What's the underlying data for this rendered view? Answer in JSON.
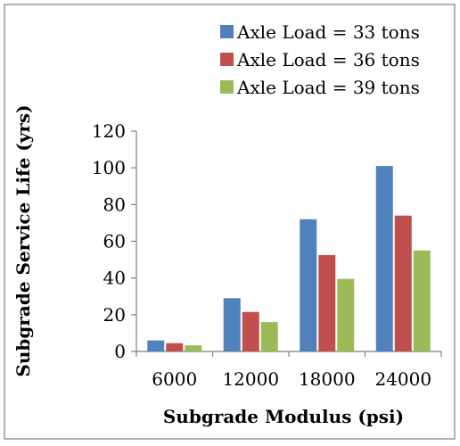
{
  "chart_data": {
    "type": "bar",
    "title": "",
    "xlabel": "Subgrade Modulus (psi)",
    "ylabel": "Subgrade Service Life (yrs)",
    "categories": [
      "6000",
      "12000",
      "18000",
      "24000"
    ],
    "y_ticks": [
      "0",
      "20",
      "40",
      "60",
      "80",
      "100",
      "120"
    ],
    "ylim": [
      0,
      120
    ],
    "grid": false,
    "legend_position": "top-right",
    "series": [
      {
        "name": "Axle Load = 33 tons",
        "color": "#4F81BD",
        "values": [
          6,
          29,
          72,
          101
        ]
      },
      {
        "name": "Axle Load = 36 tons",
        "color": "#C0504D",
        "values": [
          4.5,
          21.5,
          52.5,
          74
        ]
      },
      {
        "name": "Axle Load = 39 tons",
        "color": "#9BBB59",
        "values": [
          3.3,
          16,
          39.5,
          55
        ]
      }
    ]
  }
}
